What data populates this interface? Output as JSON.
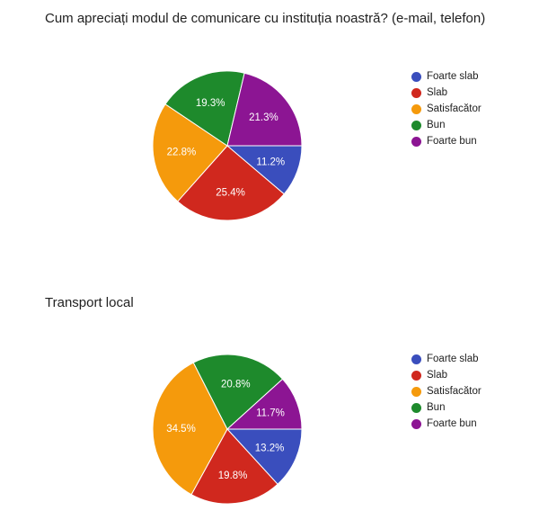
{
  "chart_data": [
    {
      "type": "pie",
      "title": "Cum apreciați modul de comunicare cu instituția noastră? (e-mail, telefon)",
      "categories": [
        "Foarte slab",
        "Slab",
        "Satisfacător",
        "Bun",
        "Foarte bun"
      ],
      "values": [
        11.2,
        25.4,
        22.8,
        19.3,
        21.3
      ],
      "labels": [
        "11.2%",
        "25.4%",
        "22.8%",
        "19.3%",
        "21.3%"
      ],
      "colors": [
        "#3a4ebd",
        "#d0281e",
        "#f59a0c",
        "#1e8a2c",
        "#8c1593"
      ],
      "legend_position": "right"
    },
    {
      "type": "pie",
      "title": "Transport local",
      "categories": [
        "Foarte slab",
        "Slab",
        "Satisfacător",
        "Bun",
        "Foarte bun"
      ],
      "values": [
        13.2,
        19.8,
        34.5,
        20.8,
        11.7
      ],
      "labels": [
        "13.2%",
        "19.8%",
        "34.5%",
        "20.8%",
        "11.7%"
      ],
      "colors": [
        "#3a4ebd",
        "#d0281e",
        "#f59a0c",
        "#1e8a2c",
        "#8c1593"
      ],
      "legend_position": "right"
    }
  ]
}
